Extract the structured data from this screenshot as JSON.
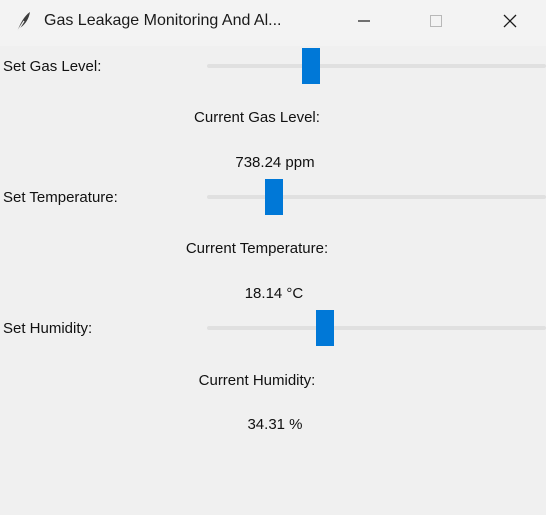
{
  "window": {
    "title": "Gas Leakage Monitoring And Al..."
  },
  "controls": {
    "gas": {
      "label": "Set Gas Level:",
      "slider_fraction": 0.307,
      "current_label": "Current Gas Level:",
      "current_value": "738.24 ppm"
    },
    "temperature": {
      "label": "Set Temperature:",
      "slider_fraction": 0.197,
      "current_label": "Current Temperature:",
      "current_value": "18.14 °C"
    },
    "humidity": {
      "label": "Set Humidity:",
      "slider_fraction": 0.348,
      "current_label": "Current Humidity:",
      "current_value": "34.31 %"
    }
  },
  "colors": {
    "accent": "#0078d7",
    "background": "#f0f0f0",
    "track": "#e0e0e0"
  },
  "icons": {
    "app": "feather-icon",
    "minimize": "minimize-icon",
    "maximize": "maximize-icon",
    "close": "close-icon"
  }
}
